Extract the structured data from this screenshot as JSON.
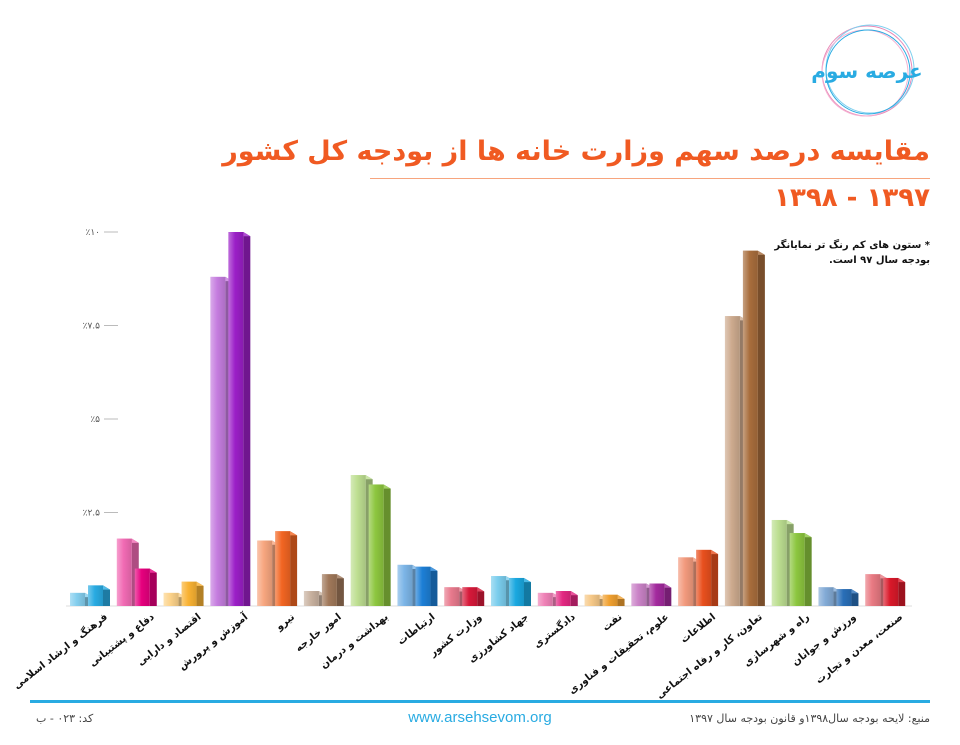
{
  "header": {
    "title_line1": "مقایسه درصد سهم وزارت خانه ها از بودجه کل کشور",
    "title_line2": "۱۳۹۷ - ۱۳۹۸",
    "logo_text": "عرصه سوم",
    "logo_icon": "arsehsevom-logo-icon"
  },
  "note": {
    "line1": "* ستون های کم رنگ تر نمایانگر",
    "line2": "بودجه سال ۹۷ است."
  },
  "footer": {
    "code": "کد: ۰۲۳ - ب",
    "website": "www.arsehsevom.org",
    "source": "منبع: لایحه بودجه سال۱۳۹۸و قانون بودجه سال ۱۳۹۷",
    "line_color": "#29abe2"
  },
  "chart_data": {
    "type": "bar",
    "title": "مقایسه درصد سهم وزارت خانه ها از بودجه کل کشور",
    "subtitle": "۱۳۹۷ - ۱۳۹۸",
    "y_ticks": [
      "٪۱۰",
      "٪۷.۵",
      "٪۵",
      "٪۲.۵"
    ],
    "y_tick_values": [
      10,
      7.5,
      5,
      2.5
    ],
    "ylim": [
      0,
      10
    ],
    "grid": false,
    "categories": [
      "فرهنگ و ارشاد اسلامی",
      "دفاع و پشتیبانی",
      "اقتصاد و دارایی",
      "آموزش و پرورش",
      "نیرو",
      "امور خارجه",
      "بهداشت و درمان",
      "ارتباطات",
      "وزارت کشور",
      "جهاد کشاورزی",
      "دادگستری",
      "نفت",
      "علوم، تحقیقات و فناوری",
      "اطلاعات",
      "تعاون، کار و رفاه اجتماعی",
      "راه و شهرسازی",
      "ورزش و جوانان",
      "صنعت، معدن و تجارت"
    ],
    "series": [
      {
        "values": [
          0.35,
          1.8,
          0.35,
          8.8,
          1.75,
          0.4,
          3.5,
          1.1,
          0.5,
          0.8,
          0.35,
          0.3,
          0.6,
          1.3,
          7.75,
          2.3,
          0.5,
          0.85
        ]
      },
      {
        "values": [
          0.55,
          1.0,
          0.65,
          10.0,
          2.0,
          0.85,
          3.25,
          1.05,
          0.5,
          0.75,
          0.4,
          0.3,
          0.6,
          1.5,
          9.5,
          1.95,
          0.45,
          0.75
        ]
      }
    ],
    "colors": [
      "#29abe2",
      "#e6007e",
      "#f9b233",
      "#9b1fc7",
      "#f26522",
      "#a0785a",
      "#8dc63f",
      "#1d7fd6",
      "#d7193a",
      "#1aa8e0",
      "#e32882",
      "#f0a030",
      "#a32a9e",
      "#e8501e",
      "#a86d3c",
      "#8cc63f",
      "#2a6fb8",
      "#d9192a"
    ]
  }
}
